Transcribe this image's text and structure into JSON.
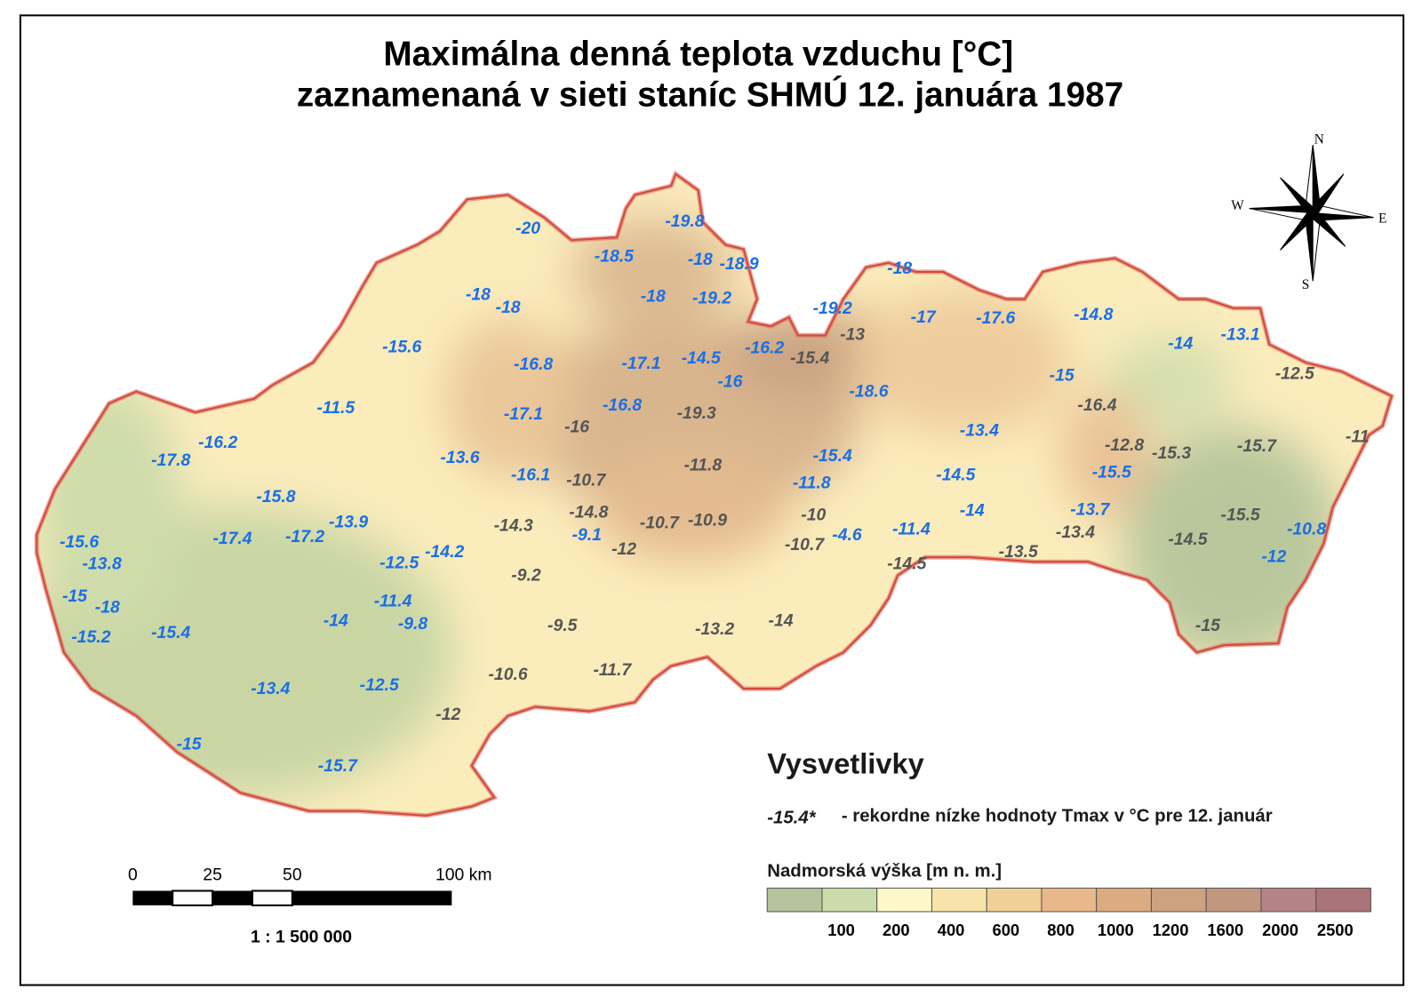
{
  "title": [
    "Maximálna denná teplota vzduchu [°C]",
    "zaznamenaná v sieti staníc SHMÚ 12. januára 1987"
  ],
  "compass": {
    "n": "N",
    "w": "W",
    "e": "E",
    "s": "S"
  },
  "record_color": "#1a6fe6",
  "other_color": "#555555",
  "stations": [
    {
      "label": "-20",
      "record": true
    },
    {
      "label": "-19.8",
      "record": true
    },
    {
      "label": "-18.5",
      "record": true
    },
    {
      "label": "-18",
      "record": true
    },
    {
      "label": "-18.9",
      "record": true
    },
    {
      "label": "-18",
      "record": true
    },
    {
      "label": "-18",
      "record": true
    },
    {
      "label": "-18",
      "record": true
    },
    {
      "label": "-19.2",
      "record": true
    },
    {
      "label": "-15.6",
      "record": true
    },
    {
      "label": "-16.8",
      "record": true
    },
    {
      "label": "-17.1",
      "record": true
    },
    {
      "label": "-14.5",
      "record": true
    },
    {
      "label": "-16.2",
      "record": true
    },
    {
      "label": "-16",
      "record": true
    },
    {
      "label": "-19.2",
      "record": true
    },
    {
      "label": "-18",
      "record": true
    },
    {
      "label": "-17",
      "record": true
    },
    {
      "label": "-17.6",
      "record": true
    },
    {
      "label": "-14.8",
      "record": true
    },
    {
      "label": "-14",
      "record": true
    },
    {
      "label": "-13.1",
      "record": true
    },
    {
      "label": "-15",
      "record": true
    },
    {
      "label": "-18.6",
      "record": true
    },
    {
      "label": "-11.5",
      "record": true
    },
    {
      "label": "-17.1",
      "record": true
    },
    {
      "label": "-16.8",
      "record": true
    },
    {
      "label": "-16.2",
      "record": true
    },
    {
      "label": "-17.8",
      "record": true
    },
    {
      "label": "-13.6",
      "record": true
    },
    {
      "label": "-16.1",
      "record": true
    },
    {
      "label": "-15.4",
      "record": true
    },
    {
      "label": "-13.4",
      "record": true
    },
    {
      "label": "-11.8",
      "record": true
    },
    {
      "label": "-14.5",
      "record": true
    },
    {
      "label": "-15.5",
      "record": true
    },
    {
      "label": "-15.8",
      "record": true
    },
    {
      "label": "-13.9",
      "record": true
    },
    {
      "label": "-17.4",
      "record": true
    },
    {
      "label": "-17.2",
      "record": true
    },
    {
      "label": "-9.1",
      "record": true
    },
    {
      "label": "-4.6",
      "record": true
    },
    {
      "label": "-11.4",
      "record": true
    },
    {
      "label": "-14",
      "record": true
    },
    {
      "label": "-13.7",
      "record": true
    },
    {
      "label": "-10.8",
      "record": true
    },
    {
      "label": "-12",
      "record": true
    },
    {
      "label": "-15.6",
      "record": true
    },
    {
      "label": "-13.8",
      "record": true
    },
    {
      "label": "-12.5",
      "record": true
    },
    {
      "label": "-14.2",
      "record": true
    },
    {
      "label": "-15",
      "record": true
    },
    {
      "label": "-18",
      "record": true
    },
    {
      "label": "-11.4",
      "record": true
    },
    {
      "label": "-14",
      "record": true
    },
    {
      "label": "-9.8",
      "record": true
    },
    {
      "label": "-15.2",
      "record": true
    },
    {
      "label": "-15.4",
      "record": true
    },
    {
      "label": "-13.4",
      "record": true
    },
    {
      "label": "-12.5",
      "record": true
    },
    {
      "label": "-15",
      "record": true
    },
    {
      "label": "-15.7",
      "record": true
    },
    {
      "label": "-13",
      "record": false
    },
    {
      "label": "-15.4",
      "record": false
    },
    {
      "label": "-12.5",
      "record": false
    },
    {
      "label": "-16.4",
      "record": false
    },
    {
      "label": "-16",
      "record": false
    },
    {
      "label": "-19.3",
      "record": false
    },
    {
      "label": "-12.8",
      "record": false
    },
    {
      "label": "-15.3",
      "record": false
    },
    {
      "label": "-15.7",
      "record": false
    },
    {
      "label": "-11",
      "record": false
    },
    {
      "label": "-10.7",
      "record": false
    },
    {
      "label": "-11.8",
      "record": false
    },
    {
      "label": "-14.8",
      "record": false
    },
    {
      "label": "-14.3",
      "record": false
    },
    {
      "label": "-10.7",
      "record": false
    },
    {
      "label": "-10.9",
      "record": false
    },
    {
      "label": "-12",
      "record": false
    },
    {
      "label": "-10",
      "record": false
    },
    {
      "label": "-10.7",
      "record": false
    },
    {
      "label": "-13.4",
      "record": false
    },
    {
      "label": "-15.5",
      "record": false
    },
    {
      "label": "-14.5",
      "record": false
    },
    {
      "label": "-13.5",
      "record": false
    },
    {
      "label": "-14.5",
      "record": false
    },
    {
      "label": "-9.2",
      "record": false
    },
    {
      "label": "-9.5",
      "record": false
    },
    {
      "label": "-13.2",
      "record": false
    },
    {
      "label": "-14",
      "record": false
    },
    {
      "label": "-15",
      "record": false
    },
    {
      "label": "-10.6",
      "record": false
    },
    {
      "label": "-11.7",
      "record": false
    },
    {
      "label": "-12",
      "record": false
    }
  ],
  "legend": {
    "title": "Vysvetlivky",
    "sample": "-15.4*",
    "sample_text": "- rekordne nízke hodnoty Tmax v °C pre 12. január",
    "elevation_title": "Nadmorská výška [m n. m.]",
    "elevation_colors": [
      "#b7c39c",
      "#cbdcaa",
      "#fdf8c9",
      "#f7e4aa",
      "#f1cf96",
      "#e8b78a",
      "#dbab82",
      "#cda27f",
      "#c1977f",
      "#b48385",
      "#a97378"
    ],
    "elevation_labels": [
      "100",
      "200",
      "400",
      "600",
      "800",
      "1000",
      "1200",
      "1600",
      "2000",
      "2500"
    ]
  },
  "scale": {
    "labels": [
      "0",
      "25",
      "50",
      "100 km"
    ],
    "ratio": "1 : 1 500 000"
  }
}
